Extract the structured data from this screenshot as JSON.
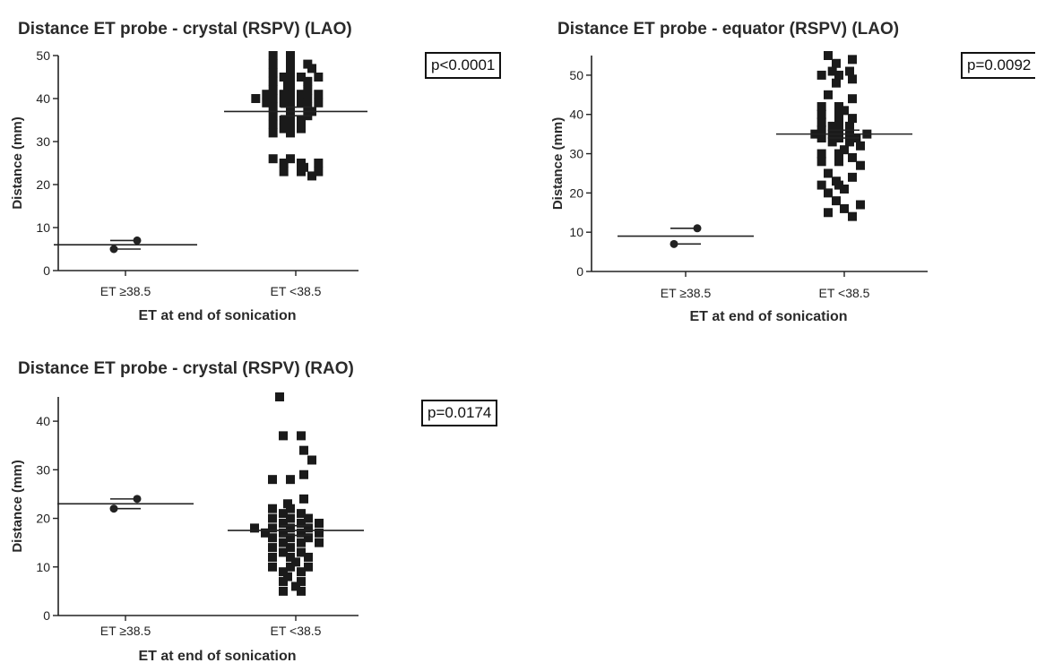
{
  "chart_data": [
    {
      "type": "scatter",
      "title": "Distance ET probe - crystal (RSPV) (LAO)",
      "xlabel": "ET at end of sonication",
      "ylabel": "Distance (mm)",
      "categories": [
        "ET ≥38.5",
        "ET <38.5"
      ],
      "ylim": [
        0,
        50
      ],
      "yticks": [
        0,
        10,
        20,
        30,
        40,
        50
      ],
      "pvalue": "p<0.0001",
      "groups": [
        {
          "category": "ET ≥38.5",
          "marker": "circle",
          "mean": 6.0,
          "sd": [
            5.0,
            7.0
          ],
          "values": [
            7,
            5
          ]
        },
        {
          "category": "ET <38.5",
          "marker": "square",
          "mean": 37,
          "sd": [
            36,
            38
          ],
          "values": [
            50,
            50,
            48,
            48,
            48,
            47,
            46,
            46,
            45,
            45,
            45,
            44,
            44,
            44,
            43,
            42,
            42,
            42,
            41,
            41,
            41,
            41,
            40,
            40,
            40,
            40,
            39,
            39,
            39,
            39,
            38,
            38,
            38,
            37,
            36,
            36,
            36,
            35,
            35,
            34,
            34,
            33,
            33,
            32,
            32,
            26,
            26,
            25,
            25,
            25,
            24,
            23,
            23,
            23,
            22
          ]
        }
      ]
    },
    {
      "type": "scatter",
      "title": "Distance ET probe - equator (RSPV) (LAO)",
      "xlabel": "ET at end of sonication",
      "ylabel": "Distance (mm)",
      "categories": [
        "ET ≥38.5",
        "ET <38.5"
      ],
      "ylim": [
        0,
        55
      ],
      "yticks": [
        0,
        10,
        20,
        30,
        40,
        50
      ],
      "pvalue": "p=0.0092",
      "groups": [
        {
          "category": "ET ≥38.5",
          "marker": "circle",
          "mean": 9.0,
          "sd": [
            7.0,
            11.0
          ],
          "values": [
            11,
            7
          ]
        },
        {
          "category": "ET <38.5",
          "marker": "square",
          "mean": 35,
          "sd": [
            34,
            36
          ],
          "values": [
            55,
            54,
            53,
            51,
            51,
            50,
            50,
            49,
            48,
            45,
            44,
            42,
            42,
            41,
            40,
            40,
            39,
            38,
            38,
            37,
            37,
            36,
            36,
            35,
            35,
            35,
            35,
            34,
            34,
            34,
            33,
            33,
            32,
            31,
            30,
            30,
            29,
            28,
            28,
            27,
            25,
            24,
            23,
            22,
            22,
            21,
            20,
            18,
            17,
            16,
            15,
            14
          ]
        }
      ]
    },
    {
      "type": "scatter",
      "title": "Distance ET probe - crystal (RSPV) (RAO)",
      "xlabel": "ET at end of sonication",
      "ylabel": "Distance (mm)",
      "categories": [
        "ET ≥38.5",
        "ET <38.5"
      ],
      "ylim": [
        0,
        45
      ],
      "yticks": [
        0,
        10,
        20,
        30,
        40
      ],
      "pvalue": "p=0.0174",
      "groups": [
        {
          "category": "ET ≥38.5",
          "marker": "circle",
          "mean": 23,
          "sd": [
            22,
            24
          ],
          "values": [
            24,
            22
          ]
        },
        {
          "category": "ET <38.5",
          "marker": "square",
          "mean": 17.5,
          "sd": [
            16.5,
            18.5
          ],
          "values": [
            45,
            37,
            37,
            34,
            32,
            29,
            28,
            28,
            24,
            23,
            22,
            22,
            21,
            21,
            20,
            20,
            20,
            19,
            19,
            19,
            18,
            18,
            18,
            18,
            17,
            17,
            17,
            17,
            16,
            16,
            16,
            15,
            15,
            15,
            14,
            14,
            13,
            13,
            12,
            12,
            12,
            11,
            10,
            10,
            10,
            9,
            9,
            8,
            7,
            7,
            6,
            5,
            5
          ]
        }
      ]
    }
  ]
}
